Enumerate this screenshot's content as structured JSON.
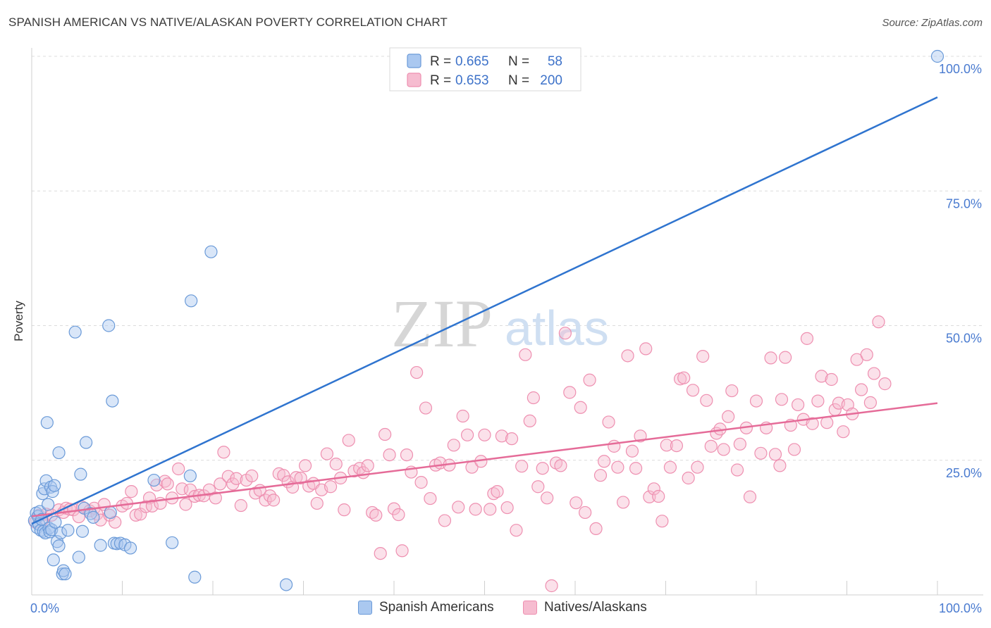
{
  "header": {
    "title": "SPANISH AMERICAN VS NATIVE/ALASKAN POVERTY CORRELATION CHART",
    "source": "Source: ZipAtlas.com"
  },
  "watermark": {
    "zip": "ZIP",
    "atlas": "atlas"
  },
  "legend": {
    "row1": {
      "r_label": "R =",
      "r_value": "0.665",
      "n_label": "N =",
      "n_value": "58"
    },
    "row2": {
      "r_label": "R =",
      "r_value": "0.653",
      "n_label": "N =",
      "n_value": "200"
    }
  },
  "bottom_legend": {
    "series1": "Spanish Americans",
    "series2": "Natives/Alaskans"
  },
  "colors": {
    "blue_fill": "#aac8f0",
    "blue_stroke": "#6a9ad8",
    "blue_line": "#2f74cf",
    "pink_fill": "#f6bcd0",
    "pink_stroke": "#ee8fb0",
    "pink_line": "#e56b98",
    "grid": "#dcdcdc",
    "tick_label": "#4a7bd0"
  },
  "chart_data": {
    "type": "scatter",
    "title": "SPANISH AMERICAN VS NATIVE/ALASKAN POVERTY CORRELATION CHART",
    "xlabel": "",
    "ylabel": "Poverty",
    "xlim": [
      0,
      100
    ],
    "ylim": [
      0,
      100
    ],
    "x_tick_labels": [
      "0.0%",
      "100.0%"
    ],
    "y_tick_labels": [
      "25.0%",
      "50.0%",
      "75.0%",
      "100.0%"
    ],
    "y_ticks": [
      25,
      50,
      75,
      100
    ],
    "grid": true,
    "legend_position": "top-center",
    "series": [
      {
        "name": "Spanish Americans",
        "color": "#6a9ad8",
        "r": 0.665,
        "n": 58,
        "trend": {
          "x": [
            0,
            100
          ],
          "y": [
            13.2,
            92.4
          ]
        },
        "points": [
          [
            0.3,
            13.8
          ],
          [
            0.5,
            15.2
          ],
          [
            0.6,
            12.5
          ],
          [
            0.7,
            14.6
          ],
          [
            0.8,
            13.1
          ],
          [
            0.9,
            15.5
          ],
          [
            1.0,
            12.0
          ],
          [
            1.1,
            14.0
          ],
          [
            1.2,
            18.8
          ],
          [
            1.3,
            11.8
          ],
          [
            1.4,
            19.7
          ],
          [
            1.5,
            11.5
          ],
          [
            1.6,
            21.2
          ],
          [
            1.7,
            32.0
          ],
          [
            1.8,
            16.8
          ],
          [
            1.9,
            12.4
          ],
          [
            2.0,
            11.7
          ],
          [
            2.1,
            20.0
          ],
          [
            2.2,
            12.1
          ],
          [
            2.3,
            19.2
          ],
          [
            2.4,
            6.5
          ],
          [
            2.5,
            20.3
          ],
          [
            2.6,
            13.5
          ],
          [
            2.8,
            9.9
          ],
          [
            3.0,
            26.4
          ],
          [
            3.0,
            9.1
          ],
          [
            3.2,
            11.5
          ],
          [
            3.4,
            3.9
          ],
          [
            3.5,
            4.5
          ],
          [
            3.7,
            3.9
          ],
          [
            4.0,
            12.0
          ],
          [
            4.8,
            48.8
          ],
          [
            5.2,
            7.0
          ],
          [
            5.4,
            22.4
          ],
          [
            5.6,
            11.8
          ],
          [
            5.8,
            16.1
          ],
          [
            6.0,
            28.3
          ],
          [
            6.5,
            15.1
          ],
          [
            6.8,
            14.4
          ],
          [
            7.6,
            9.2
          ],
          [
            8.5,
            50.0
          ],
          [
            8.7,
            15.3
          ],
          [
            8.9,
            36.0
          ],
          [
            9.1,
            9.6
          ],
          [
            9.4,
            9.5
          ],
          [
            9.8,
            9.6
          ],
          [
            10.3,
            9.3
          ],
          [
            10.9,
            8.7
          ],
          [
            13.5,
            21.3
          ],
          [
            15.5,
            9.7
          ],
          [
            17.5,
            22.1
          ],
          [
            17.6,
            54.6
          ],
          [
            18.0,
            3.3
          ],
          [
            19.8,
            63.7
          ],
          [
            28.1,
            1.9
          ],
          [
            100.0,
            100.0
          ]
        ]
      },
      {
        "name": "Natives/Alaskans",
        "color": "#ee8fb0",
        "r": 0.653,
        "n": 200,
        "trend": {
          "x": [
            0,
            100
          ],
          "y": [
            14.6,
            35.6
          ]
        },
        "points": [
          [
            0.4,
            13.5
          ],
          [
            0.8,
            14.8
          ],
          [
            1.2,
            13.9
          ],
          [
            1.6,
            15.0
          ],
          [
            2.2,
            14.8
          ],
          [
            3.0,
            15.8
          ],
          [
            3.5,
            15.3
          ],
          [
            3.8,
            16.1
          ],
          [
            4.2,
            15.9
          ],
          [
            4.6,
            15.8
          ],
          [
            5.2,
            14.5
          ],
          [
            5.6,
            16.3
          ],
          [
            6.4,
            15.6
          ],
          [
            6.9,
            16.1
          ],
          [
            7.2,
            15.0
          ],
          [
            7.6,
            13.9
          ],
          [
            8.0,
            16.8
          ],
          [
            8.6,
            14.8
          ],
          [
            9.2,
            13.5
          ],
          [
            10.0,
            16.5
          ],
          [
            10.5,
            17.0
          ],
          [
            11.0,
            19.2
          ],
          [
            11.5,
            14.8
          ],
          [
            12.0,
            15.0
          ],
          [
            12.6,
            16.4
          ],
          [
            13.0,
            18.0
          ],
          [
            13.3,
            16.5
          ],
          [
            13.8,
            20.4
          ],
          [
            14.2,
            17.0
          ],
          [
            14.7,
            21.1
          ],
          [
            15.0,
            20.6
          ],
          [
            15.5,
            18.0
          ],
          [
            16.2,
            23.4
          ],
          [
            16.6,
            19.7
          ],
          [
            17.0,
            16.8
          ],
          [
            17.5,
            19.5
          ],
          [
            18.0,
            18.3
          ],
          [
            18.5,
            18.5
          ],
          [
            19.0,
            18.4
          ],
          [
            19.6,
            19.5
          ],
          [
            20.3,
            18.0
          ],
          [
            20.8,
            20.6
          ],
          [
            21.2,
            26.5
          ],
          [
            21.7,
            22.0
          ],
          [
            22.2,
            20.6
          ],
          [
            22.6,
            21.6
          ],
          [
            23.1,
            16.6
          ],
          [
            23.7,
            21.3
          ],
          [
            24.3,
            22.1
          ],
          [
            24.7,
            18.9
          ],
          [
            25.2,
            19.4
          ],
          [
            25.8,
            17.6
          ],
          [
            26.3,
            18.4
          ],
          [
            26.7,
            17.6
          ],
          [
            27.3,
            22.5
          ],
          [
            27.8,
            22.2
          ],
          [
            28.3,
            21.0
          ],
          [
            28.8,
            20.0
          ],
          [
            29.2,
            21.8
          ],
          [
            29.7,
            21.7
          ],
          [
            30.2,
            24.0
          ],
          [
            30.6,
            20.2
          ],
          [
            31.1,
            20.7
          ],
          [
            31.5,
            17.0
          ],
          [
            32.0,
            19.5
          ],
          [
            32.6,
            26.2
          ],
          [
            33.0,
            20.1
          ],
          [
            33.6,
            24.3
          ],
          [
            34.1,
            21.7
          ],
          [
            34.5,
            15.8
          ],
          [
            35.0,
            28.7
          ],
          [
            35.6,
            23.0
          ],
          [
            36.2,
            23.5
          ],
          [
            36.6,
            22.7
          ],
          [
            37.1,
            24.0
          ],
          [
            37.6,
            15.3
          ],
          [
            38.0,
            14.8
          ],
          [
            38.5,
            7.7
          ],
          [
            39.0,
            29.8
          ],
          [
            39.5,
            26.0
          ],
          [
            40.0,
            16.0
          ],
          [
            40.5,
            14.9
          ],
          [
            40.9,
            8.2
          ],
          [
            41.4,
            26.0
          ],
          [
            41.9,
            22.8
          ],
          [
            42.5,
            41.3
          ],
          [
            43.0,
            20.9
          ],
          [
            43.5,
            34.7
          ],
          [
            44.0,
            17.9
          ],
          [
            44.6,
            24.1
          ],
          [
            45.1,
            24.5
          ],
          [
            45.6,
            13.8
          ],
          [
            46.1,
            24.1
          ],
          [
            46.6,
            27.8
          ],
          [
            47.1,
            16.3
          ],
          [
            47.6,
            33.2
          ],
          [
            48.1,
            29.7
          ],
          [
            48.6,
            23.7
          ],
          [
            49.0,
            15.9
          ],
          [
            49.6,
            24.8
          ],
          [
            50.0,
            29.7
          ],
          [
            50.6,
            15.9
          ],
          [
            51.0,
            18.8
          ],
          [
            51.4,
            19.2
          ],
          [
            51.9,
            29.5
          ],
          [
            52.5,
            16.2
          ],
          [
            53.0,
            29.0
          ],
          [
            53.5,
            12.0
          ],
          [
            54.1,
            23.9
          ],
          [
            54.5,
            44.6
          ],
          [
            55.0,
            32.3
          ],
          [
            55.4,
            36.6
          ],
          [
            55.9,
            20.1
          ],
          [
            56.4,
            23.5
          ],
          [
            56.9,
            18.0
          ],
          [
            57.4,
            1.7
          ],
          [
            57.9,
            24.5
          ],
          [
            58.4,
            24.0
          ],
          [
            58.9,
            48.6
          ],
          [
            59.4,
            37.6
          ],
          [
            60.1,
            17.1
          ],
          [
            60.6,
            34.8
          ],
          [
            61.1,
            15.3
          ],
          [
            61.6,
            39.9
          ],
          [
            62.3,
            12.3
          ],
          [
            62.8,
            22.2
          ],
          [
            63.2,
            24.8
          ],
          [
            63.7,
            32.1
          ],
          [
            64.3,
            27.6
          ],
          [
            64.7,
            23.7
          ],
          [
            65.3,
            17.2
          ],
          [
            65.8,
            44.4
          ],
          [
            66.3,
            26.7
          ],
          [
            66.7,
            23.5
          ],
          [
            67.2,
            29.5
          ],
          [
            67.8,
            45.7
          ],
          [
            68.2,
            18.2
          ],
          [
            68.7,
            19.7
          ],
          [
            69.2,
            18.3
          ],
          [
            69.6,
            13.7
          ],
          [
            70.1,
            27.8
          ],
          [
            70.5,
            23.7
          ],
          [
            71.2,
            27.7
          ],
          [
            71.6,
            40.1
          ],
          [
            72.0,
            40.3
          ],
          [
            72.5,
            21.7
          ],
          [
            73.0,
            38.0
          ],
          [
            73.5,
            23.7
          ],
          [
            74.1,
            44.3
          ],
          [
            74.5,
            36.1
          ],
          [
            75.0,
            27.6
          ],
          [
            75.6,
            30.0
          ],
          [
            76.0,
            30.8
          ],
          [
            76.4,
            27.0
          ],
          [
            76.9,
            33.1
          ],
          [
            77.3,
            37.9
          ],
          [
            77.9,
            23.2
          ],
          [
            78.2,
            28.0
          ],
          [
            78.9,
            31.0
          ],
          [
            79.3,
            18.2
          ],
          [
            80.0,
            36.0
          ],
          [
            80.5,
            26.3
          ],
          [
            81.1,
            31.0
          ],
          [
            81.6,
            44.0
          ],
          [
            82.1,
            26.1
          ],
          [
            82.6,
            24.0
          ],
          [
            82.8,
            36.3
          ],
          [
            83.2,
            44.1
          ],
          [
            83.8,
            31.5
          ],
          [
            84.2,
            27.0
          ],
          [
            84.6,
            35.3
          ],
          [
            85.2,
            32.6
          ],
          [
            85.6,
            47.6
          ],
          [
            86.2,
            31.8
          ],
          [
            86.8,
            36.0
          ],
          [
            87.2,
            40.6
          ],
          [
            87.8,
            32.0
          ],
          [
            88.3,
            40.0
          ],
          [
            88.7,
            34.4
          ],
          [
            89.1,
            35.6
          ],
          [
            89.6,
            30.3
          ],
          [
            90.1,
            35.3
          ],
          [
            90.6,
            33.6
          ],
          [
            91.1,
            43.7
          ],
          [
            91.6,
            38.1
          ],
          [
            92.2,
            44.6
          ],
          [
            92.6,
            35.7
          ],
          [
            93.0,
            41.1
          ],
          [
            93.5,
            50.7
          ],
          [
            94.2,
            39.2
          ]
        ]
      }
    ]
  }
}
